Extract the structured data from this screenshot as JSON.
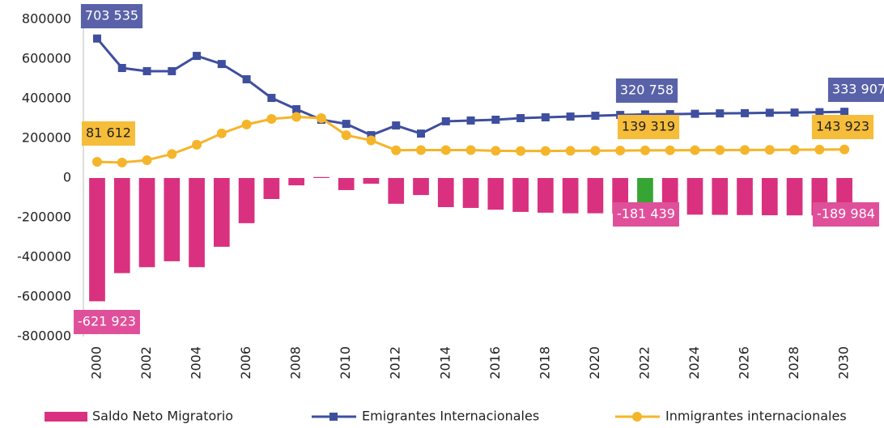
{
  "chart_data": {
    "type": "bar-line",
    "categories": [
      "2000",
      null,
      "2002",
      null,
      "2004",
      null,
      "2006",
      null,
      "2008",
      null,
      "2010",
      null,
      "2012",
      null,
      "2014",
      null,
      "2016",
      null,
      "2018",
      null,
      "2020",
      null,
      "2022",
      null,
      "2024",
      null,
      "2026",
      null,
      "2028",
      null,
      "2030"
    ],
    "ylim": [
      -800000,
      800000
    ],
    "yticks": [
      -800000,
      -600000,
      -400000,
      -200000,
      0,
      200000,
      400000,
      600000,
      800000
    ],
    "grid": false,
    "legend": "bottom",
    "series": [
      {
        "name": "Saldo Neto Migratorio",
        "type": "bar",
        "color": "#d9317f",
        "colors": [
          "#d9317f",
          "#d9317f",
          "#d9317f",
          "#d9317f",
          "#d9317f",
          "#d9317f",
          "#d9317f",
          "#d9317f",
          "#d9317f",
          "#d9317f",
          "#d9317f",
          "#d9317f",
          "#d9317f",
          "#d9317f",
          "#d9317f",
          "#d9317f",
          "#d9317f",
          "#d9317f",
          "#d9317f",
          "#d9317f",
          "#d9317f",
          "#d9317f",
          "#36a534",
          "#d9317f",
          "#d9317f",
          "#d9317f",
          "#d9317f",
          "#d9317f",
          "#d9317f",
          "#d9317f",
          "#d9317f"
        ],
        "values": [
          -621923,
          -480000,
          -450000,
          -420000,
          -450000,
          -347000,
          -228000,
          -106000,
          -37000,
          5000,
          -61000,
          -29000,
          -130000,
          -86000,
          -147000,
          -151000,
          -160000,
          -171000,
          -175000,
          -178000,
          -178000,
          -180000,
          -181439,
          -183000,
          -185000,
          -186000,
          -187000,
          -188000,
          -188500,
          -189000,
          -189984
        ],
        "value_labels": [
          "-621 923",
          null,
          null,
          null,
          null,
          null,
          null,
          null,
          null,
          null,
          null,
          null,
          null,
          null,
          null,
          null,
          null,
          null,
          null,
          null,
          null,
          null,
          "-181 439",
          null,
          null,
          null,
          null,
          null,
          null,
          null,
          "-189 984"
        ]
      },
      {
        "name": "Emigrantes Internacionales",
        "type": "line",
        "marker": "square",
        "color": "#3f4f9f",
        "values": [
          703535,
          555000,
          539000,
          539000,
          616000,
          575000,
          498000,
          404000,
          347000,
          294000,
          273000,
          216000,
          265000,
          224000,
          286000,
          290000,
          294000,
          302000,
          306000,
          310000,
          314000,
          318000,
          320758,
          322000,
          324000,
          326000,
          327000,
          329000,
          330000,
          332000,
          333907
        ],
        "value_labels": [
          "703 535",
          null,
          null,
          null,
          null,
          null,
          null,
          null,
          null,
          null,
          null,
          null,
          null,
          null,
          null,
          null,
          null,
          null,
          null,
          null,
          null,
          null,
          "320 758",
          null,
          null,
          null,
          null,
          null,
          null,
          null,
          "333 907"
        ]
      },
      {
        "name": "Inmigrantes internacionales",
        "type": "line",
        "marker": "circle",
        "color": "#f5b52a",
        "values": [
          81612,
          78000,
          90000,
          121000,
          168000,
          225000,
          270000,
          298000,
          308000,
          302000,
          216000,
          190000,
          140000,
          141000,
          141000,
          141000,
          137000,
          136000,
          136000,
          137000,
          138000,
          138500,
          139319,
          140000,
          140500,
          141000,
          141500,
          142000,
          142500,
          143200,
          143923
        ],
        "value_labels": [
          "81 612",
          null,
          null,
          null,
          null,
          null,
          null,
          null,
          null,
          null,
          null,
          null,
          null,
          null,
          null,
          null,
          null,
          null,
          null,
          null,
          null,
          null,
          "139 319",
          null,
          null,
          null,
          null,
          null,
          null,
          null,
          "143 923"
        ]
      }
    ]
  }
}
